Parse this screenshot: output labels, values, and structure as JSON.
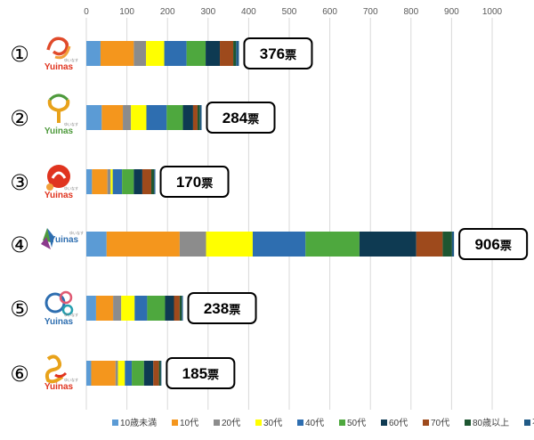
{
  "chart_data": {
    "type": "bar",
    "orientation": "horizontal",
    "stacked": true,
    "xlim": [
      0,
      1000
    ],
    "x_ticks": [
      0,
      100,
      200,
      300,
      400,
      500,
      600,
      700,
      800,
      900,
      1000
    ],
    "categories": [
      "①",
      "②",
      "③",
      "④",
      "⑤",
      "⑥"
    ],
    "totals": [
      376,
      284,
      170,
      906,
      238,
      185
    ],
    "total_unit": "票",
    "series": [
      {
        "name": "10歳未満",
        "color": "#5B9BD5",
        "values": [
          35,
          38,
          14,
          50,
          24,
          12
        ]
      },
      {
        "name": "10代",
        "color": "#F4961D",
        "values": [
          82,
          52,
          38,
          180,
          42,
          60
        ]
      },
      {
        "name": "20代",
        "color": "#8C8C8C",
        "values": [
          30,
          20,
          8,
          65,
          20,
          6
        ]
      },
      {
        "name": "30代",
        "color": "#FFFF00",
        "values": [
          45,
          38,
          5,
          115,
          33,
          17
        ]
      },
      {
        "name": "40代",
        "color": "#2E6EB0",
        "values": [
          55,
          50,
          23,
          130,
          31,
          17
        ]
      },
      {
        "name": "50代",
        "color": "#4EA83E",
        "values": [
          47,
          40,
          29,
          133,
          44,
          30
        ]
      },
      {
        "name": "60代",
        "color": "#0E3A52",
        "values": [
          35,
          25,
          21,
          140,
          22,
          23
        ]
      },
      {
        "name": "70代",
        "color": "#9E4A1C",
        "values": [
          33,
          11,
          22,
          65,
          14,
          14
        ]
      },
      {
        "name": "80歳以上",
        "color": "#1E5631",
        "values": [
          7,
          6,
          7,
          23,
          5,
          4
        ]
      },
      {
        "name": "不明",
        "color": "#205A86",
        "values": [
          7,
          4,
          3,
          5,
          3,
          2
        ]
      }
    ]
  },
  "logos": [
    {
      "name": "Yuinas",
      "sub": "ゆいなす"
    },
    {
      "name": "Yuinas",
      "sub": "ゆいなす"
    },
    {
      "name": "Yuinas",
      "sub": "ゆいなす"
    },
    {
      "name": "Yuinas",
      "sub": "ゆいなす"
    },
    {
      "name": "Yuinas",
      "sub": "ゆいなす"
    },
    {
      "name": "Yuinas",
      "sub": "ゆいなす"
    }
  ]
}
